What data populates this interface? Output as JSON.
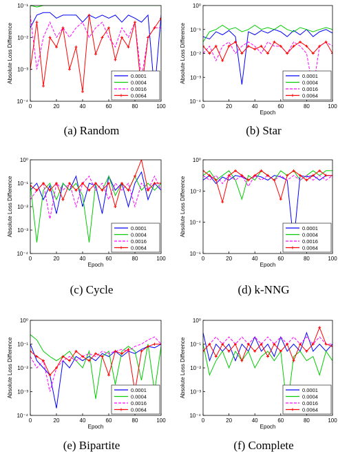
{
  "chart_data": [
    {
      "type": "line",
      "caption": "(a) Random",
      "xlabel": "",
      "ylabel": "Absolute Loss Difference",
      "xlim": [
        0,
        100
      ],
      "ylim_log10": [
        -4,
        -1
      ],
      "y_scale": "log",
      "xticks": [
        "0",
        "20",
        "40",
        "60",
        "80",
        "100"
      ],
      "yticks": [
        "10⁻¹",
        "10⁻²",
        "10⁻³",
        "10⁻⁴"
      ],
      "legend": [
        "0.0001",
        "0.0004",
        "0.0016",
        "0.0064"
      ],
      "legend_position": "bottom-right",
      "x": [
        0,
        5,
        10,
        15,
        20,
        25,
        30,
        35,
        40,
        45,
        50,
        55,
        60,
        65,
        70,
        75,
        80,
        85,
        90,
        95,
        100
      ],
      "series": [
        {
          "name": "0.0001",
          "color": "#0000ff",
          "values": [
            0.02,
            0.05,
            0.06,
            0.06,
            0.04,
            0.05,
            0.05,
            0.05,
            0.03,
            0.05,
            0.04,
            0.05,
            0.04,
            0.05,
            0.03,
            0.05,
            0.04,
            0.03,
            0.05,
            0.0002,
            0.05
          ]
        },
        {
          "name": "0.0004",
          "color": "#00cc00",
          "values": [
            0.1,
            0.09,
            0.15,
            0.15,
            0.12,
            0.15,
            0.15,
            0.1,
            0.15,
            0.12,
            0.15,
            0.1,
            0.15,
            0.15,
            0.12,
            0.15,
            0.1,
            0.15,
            0.12,
            0.1,
            0.1
          ]
        },
        {
          "name": "0.0016",
          "color": "#ff00ff",
          "values": [
            0.05,
            0.001,
            0.01,
            0.03,
            0.01,
            0.02,
            0.01,
            0.02,
            0.03,
            0.01,
            0.02,
            0.03,
            0.01,
            0.005,
            0.02,
            0.01,
            0.03,
            0.0005,
            0.01,
            0.02,
            0.02
          ]
        },
        {
          "name": "0.0064",
          "color": "#ff0000",
          "values": [
            0.001,
            0.03,
            0.0003,
            0.01,
            0.005,
            0.02,
            0.001,
            0.005,
            0.0002,
            0.05,
            0.003,
            0.01,
            0.02,
            0.002,
            0.01,
            0.005,
            0.03,
            0.0002,
            0.01,
            0.02,
            0.04
          ]
        }
      ]
    },
    {
      "type": "line",
      "caption": "(b) Star",
      "xlabel": "Epoch",
      "ylabel": "Absolute Loss Difference",
      "xlim": [
        0,
        100
      ],
      "ylim_log10": [
        -4,
        0
      ],
      "y_scale": "log",
      "xticks": [
        "0",
        "20",
        "40",
        "60",
        "80",
        "100"
      ],
      "yticks": [
        "10⁰",
        "10⁻¹",
        "10⁻²",
        "10⁻³",
        "10⁻⁴"
      ],
      "legend": [
        "0.0001",
        "0.0004",
        "0.0016",
        "0.0064"
      ],
      "legend_position": "bottom-right",
      "x": [
        0,
        5,
        10,
        15,
        20,
        25,
        30,
        35,
        40,
        45,
        50,
        55,
        60,
        65,
        70,
        75,
        80,
        85,
        90,
        95,
        100
      ],
      "series": [
        {
          "name": "0.0001",
          "color": "#0000ff",
          "values": [
            0.05,
            0.04,
            0.08,
            0.06,
            0.09,
            0.05,
            0.0005,
            0.08,
            0.06,
            0.09,
            0.07,
            0.1,
            0.08,
            0.05,
            0.09,
            0.06,
            0.1,
            0.05,
            0.08,
            0.1,
            0.07
          ]
        },
        {
          "name": "0.0004",
          "color": "#00cc00",
          "values": [
            0.03,
            0.08,
            0.1,
            0.15,
            0.1,
            0.12,
            0.08,
            0.1,
            0.15,
            0.1,
            0.12,
            0.1,
            0.15,
            0.1,
            0.08,
            0.12,
            0.1,
            0.08,
            0.1,
            0.12,
            0.1
          ]
        },
        {
          "name": "0.0016",
          "color": "#ff00ff",
          "values": [
            0.01,
            0.02,
            0.005,
            0.02,
            0.03,
            0.01,
            0.02,
            0.03,
            0.02,
            0.01,
            0.03,
            0.02,
            0.02,
            0.01,
            0.03,
            0.02,
            0.01,
            0.0003,
            0.02,
            0.03,
            0.02
          ]
        },
        {
          "name": "0.0064",
          "color": "#ff0000",
          "values": [
            0.02,
            0.01,
            0.02,
            0.005,
            0.02,
            0.03,
            0.01,
            0.02,
            0.015,
            0.02,
            0.01,
            0.03,
            0.02,
            0.01,
            0.02,
            0.03,
            0.02,
            0.01,
            0.02,
            0.03,
            0.01
          ]
        }
      ]
    },
    {
      "type": "line",
      "caption": "(c) Cycle",
      "xlabel": "Epoch",
      "ylabel": "Absolute Loss Difference",
      "xlim": [
        0,
        100
      ],
      "ylim_log10": [
        -4,
        0
      ],
      "y_scale": "log",
      "xticks": [
        "0",
        "20",
        "40",
        "60",
        "80",
        "100"
      ],
      "yticks": [
        "10⁰",
        "10⁻¹",
        "10⁻²",
        "10⁻³",
        "10⁻⁴"
      ],
      "legend": [
        "0.0001",
        "0.0004",
        "0.0016",
        "0.0064"
      ],
      "legend_position": "bottom-right",
      "x": [
        0,
        5,
        10,
        15,
        20,
        25,
        30,
        35,
        40,
        45,
        50,
        55,
        60,
        65,
        70,
        75,
        80,
        85,
        90,
        95,
        100
      ],
      "series": [
        {
          "name": "0.0001",
          "color": "#0000ff",
          "values": [
            0.05,
            0.1,
            0.02,
            0.08,
            0.005,
            0.1,
            0.05,
            0.2,
            0.01,
            0.1,
            0.08,
            0.005,
            0.2,
            0.05,
            0.1,
            0.01,
            0.1,
            0.3,
            0.02,
            0.1,
            0.05
          ]
        },
        {
          "name": "0.0004",
          "color": "#00cc00",
          "values": [
            0.1,
            0.0003,
            0.05,
            0.1,
            0.02,
            0.1,
            0.05,
            0.1,
            0.03,
            0.0003,
            0.1,
            0.05,
            0.2,
            0.03,
            0.1,
            0.05,
            0.2,
            0.05,
            0.1,
            0.05,
            0.1
          ]
        },
        {
          "name": "0.0016",
          "color": "#ff00ff",
          "values": [
            0.02,
            0.05,
            0.1,
            0.003,
            0.1,
            0.05,
            0.1,
            0.01,
            0.1,
            0.2,
            0.05,
            0.1,
            0.02,
            0.1,
            0.05,
            0.1,
            0.01,
            0.1,
            0.05,
            0.2,
            0.05
          ]
        },
        {
          "name": "0.0064",
          "color": "#ff0000",
          "values": [
            0.08,
            0.05,
            0.1,
            0.05,
            0.1,
            0.02,
            0.1,
            0.05,
            0.1,
            0.05,
            0.1,
            0.05,
            0.1,
            0.01,
            0.1,
            0.05,
            0.2,
            1.0,
            0.05,
            0.1,
            0.1
          ]
        }
      ]
    },
    {
      "type": "line",
      "caption": "(d) k-NNG",
      "xlabel": "Epoch",
      "ylabel": "Absolute Loss Difference",
      "xlim": [
        0,
        100
      ],
      "ylim_log10": [
        -6,
        0
      ],
      "y_scale": "log",
      "xticks": [
        "0",
        "20",
        "40",
        "60",
        "80",
        "100"
      ],
      "yticks": [
        "10⁰",
        "10⁻²",
        "10⁻⁴",
        "10⁻⁶"
      ],
      "legend": [
        "0.0001",
        "0.0004",
        "0.0016",
        "0.0064"
      ],
      "legend_position": "bottom-right",
      "x": [
        0,
        5,
        10,
        15,
        20,
        25,
        30,
        35,
        40,
        45,
        50,
        55,
        60,
        65,
        70,
        75,
        80,
        85,
        90,
        95,
        100
      ],
      "series": [
        {
          "name": "0.0001",
          "color": "#0000ff",
          "values": [
            0.05,
            0.1,
            0.03,
            0.08,
            0.05,
            0.1,
            0.08,
            0.05,
            0.1,
            0.08,
            0.05,
            0.1,
            0.08,
            0.05,
            5e-06,
            0.1,
            0.08,
            0.1,
            0.05,
            0.1,
            0.1
          ]
        },
        {
          "name": "0.0004",
          "color": "#00cc00",
          "values": [
            0.1,
            0.2,
            0.05,
            0.1,
            0.2,
            0.05,
            0.003,
            0.1,
            0.05,
            0.2,
            0.1,
            0.05,
            0.2,
            0.1,
            0.2,
            0.05,
            0.1,
            0.2,
            0.1,
            0.2,
            0.2
          ]
        },
        {
          "name": "0.0016",
          "color": "#ff00ff",
          "values": [
            0.1,
            0.05,
            0.1,
            0.03,
            0.1,
            0.05,
            0.1,
            0.02,
            0.1,
            0.05,
            0.1,
            0.05,
            0.1,
            0.05,
            0.1,
            0.05,
            0.1,
            0.05,
            0.1,
            0.05,
            0.1
          ]
        },
        {
          "name": "0.0064",
          "color": "#ff0000",
          "values": [
            0.2,
            0.1,
            0.05,
            0.002,
            0.1,
            0.2,
            0.1,
            0.05,
            0.1,
            0.2,
            0.1,
            0.05,
            0.003,
            0.1,
            0.2,
            0.1,
            0.05,
            0.1,
            0.2,
            0.1,
            0.1
          ]
        }
      ]
    },
    {
      "type": "line",
      "caption": "(e) Bipartite",
      "xlabel": "Epoch",
      "ylabel": "Absolute Loss Difference",
      "xlim": [
        0,
        100
      ],
      "ylim_log10": [
        -4,
        0
      ],
      "y_scale": "log",
      "xticks": [
        "0",
        "20",
        "40",
        "60",
        "80",
        "100"
      ],
      "yticks": [
        "10⁰",
        "10⁻¹",
        "10⁻²",
        "10⁻³",
        "10⁻⁴"
      ],
      "legend": [
        "0.0001",
        "0.0004",
        "0.0016",
        "0.0064"
      ],
      "legend_position": "bottom-right",
      "x": [
        0,
        5,
        10,
        15,
        20,
        25,
        30,
        35,
        40,
        45,
        50,
        55,
        60,
        65,
        70,
        75,
        80,
        85,
        90,
        95,
        100
      ],
      "series": [
        {
          "name": "0.0001",
          "color": "#0000ff",
          "values": [
            0.1,
            0.02,
            0.01,
            0.005,
            0.0002,
            0.02,
            0.01,
            0.03,
            0.02,
            0.03,
            0.02,
            0.04,
            0.03,
            0.05,
            0.03,
            0.05,
            0.04,
            0.06,
            0.08,
            0.07,
            0.1
          ]
        },
        {
          "name": "0.0004",
          "color": "#00cc00",
          "values": [
            0.25,
            0.15,
            0.05,
            0.03,
            0.02,
            0.03,
            0.05,
            0.02,
            0.01,
            0.05,
            0.0005,
            0.03,
            0.05,
            0.002,
            0.05,
            0.08,
            0.05,
            0.003,
            0.1,
            0.001,
            0.08
          ]
        },
        {
          "name": "0.0016",
          "color": "#ff00ff",
          "values": [
            0.03,
            0.01,
            0.02,
            0.001,
            0.01,
            0.02,
            0.03,
            0.02,
            0.03,
            0.04,
            0.03,
            0.05,
            0.04,
            0.05,
            0.06,
            0.05,
            0.08,
            0.1,
            0.15,
            0.2,
            0.1
          ]
        },
        {
          "name": "0.0064",
          "color": "#ff0000",
          "values": [
            0.05,
            0.03,
            0.02,
            0.005,
            0.01,
            0.03,
            0.02,
            0.05,
            0.03,
            0.02,
            0.04,
            0.03,
            0.005,
            0.05,
            0.04,
            0.06,
            0.001,
            0.05,
            0.08,
            0.1,
            0.1
          ]
        }
      ]
    },
    {
      "type": "line",
      "caption": "(f) Complete",
      "xlabel": "Epoch",
      "ylabel": "Absolute Loss Difference",
      "xlim": [
        0,
        100
      ],
      "ylim_log10": [
        -4,
        0
      ],
      "y_scale": "log",
      "xticks": [
        "0",
        "20",
        "40",
        "60",
        "80",
        "100"
      ],
      "yticks": [
        "10⁰",
        "10⁻¹",
        "10⁻²",
        "10⁻³",
        "10⁻⁴"
      ],
      "legend": [
        "0.0001",
        "0.0004",
        "0.0016",
        "0.0064"
      ],
      "legend_position": "bottom-right",
      "x": [
        0,
        5,
        10,
        15,
        20,
        25,
        30,
        35,
        40,
        45,
        50,
        55,
        60,
        65,
        70,
        75,
        80,
        85,
        90,
        95,
        100
      ],
      "series": [
        {
          "name": "0.0001",
          "color": "#0000ff",
          "values": [
            0.3,
            0.02,
            0.1,
            0.05,
            0.1,
            0.02,
            0.1,
            0.05,
            0.2,
            0.05,
            0.1,
            0.03,
            0.2,
            0.05,
            0.1,
            0.05,
            0.3,
            0.05,
            0.1,
            0.05,
            0.1
          ]
        },
        {
          "name": "0.0004",
          "color": "#00cc00",
          "values": [
            0.1,
            0.005,
            0.02,
            0.05,
            0.01,
            0.05,
            0.02,
            0.05,
            0.01,
            0.03,
            0.05,
            0.02,
            0.05,
            0.0002,
            0.03,
            0.05,
            0.02,
            0.03,
            0.005,
            0.05,
            0.02
          ]
        },
        {
          "name": "0.0016",
          "color": "#ff00ff",
          "values": [
            0.05,
            0.1,
            0.2,
            0.1,
            0.2,
            0.1,
            0.2,
            0.1,
            0.2,
            0.1,
            0.2,
            0.1,
            0.2,
            0.1,
            0.2,
            0.1,
            0.2,
            0.1,
            0.2,
            0.1,
            0.1
          ]
        },
        {
          "name": "0.0064",
          "color": "#ff0000",
          "values": [
            0.05,
            0.1,
            0.03,
            0.1,
            0.05,
            0.1,
            0.02,
            0.1,
            0.05,
            0.1,
            0.03,
            0.1,
            0.05,
            0.1,
            0.02,
            0.1,
            0.05,
            0.1,
            0.5,
            0.1,
            0.08
          ]
        }
      ]
    }
  ]
}
